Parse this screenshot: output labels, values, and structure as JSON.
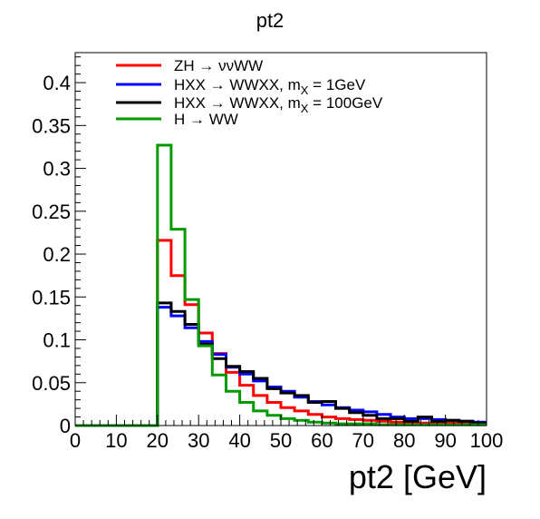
{
  "chart_data": {
    "type": "line",
    "title": "pt2",
    "xlabel": "pt2 [GeV]",
    "ylabel": "",
    "xlim": [
      0,
      100
    ],
    "ylim": [
      0,
      0.435
    ],
    "x_ticks": [
      0,
      10,
      20,
      30,
      40,
      50,
      60,
      70,
      80,
      90,
      100
    ],
    "x_tick_labels": [
      "0",
      "10",
      "20",
      "30",
      "40",
      "50",
      "60",
      "70",
      "80",
      "90",
      "100"
    ],
    "y_ticks": [
      0,
      0.05,
      0.1,
      0.15,
      0.2,
      0.25,
      0.3,
      0.35,
      0.4
    ],
    "y_tick_labels": [
      "0",
      "0.05",
      "0.1",
      "0.15",
      "0.2",
      "0.25",
      "0.3",
      "0.35",
      "0.4"
    ],
    "legend_position": "top-left",
    "bin_edges": [
      0,
      3.33,
      6.67,
      10,
      13.33,
      16.67,
      20,
      23.33,
      26.67,
      30,
      33.33,
      36.67,
      40,
      43.33,
      46.67,
      50,
      53.33,
      56.67,
      60,
      63.33,
      66.67,
      70,
      73.33,
      76.67,
      80,
      83.33,
      86.67,
      90,
      93.33,
      96.67,
      100
    ],
    "series": [
      {
        "name": "ZH → ννWW",
        "color": "#ff0000",
        "values": [
          0,
          0,
          0,
          0,
          0,
          0,
          0.216,
          0.175,
          0.141,
          0.108,
          0.084,
          0.062,
          0.047,
          0.035,
          0.027,
          0.021,
          0.017,
          0.013,
          0.01,
          0.008,
          0.007,
          0.006,
          0.005,
          0.004,
          0.004,
          0.003,
          0.003,
          0.003,
          0.002,
          0.002
        ]
      },
      {
        "name": "HXX → WWXX, m = 1GeV",
        "color": "#0000ff",
        "values": [
          0,
          0,
          0,
          0,
          0,
          0,
          0.138,
          0.128,
          0.114,
          0.098,
          0.083,
          0.068,
          0.06,
          0.052,
          0.045,
          0.04,
          0.033,
          0.028,
          0.024,
          0.021,
          0.018,
          0.016,
          0.013,
          0.01,
          0.008,
          0.008,
          0.007,
          0.006,
          0.005,
          0.004
        ]
      },
      {
        "name": "HXX → WWXX, m = 100GeV",
        "color": "#000000",
        "values": [
          0,
          0,
          0,
          0,
          0,
          0,
          0.143,
          0.133,
          0.118,
          0.095,
          0.078,
          0.069,
          0.063,
          0.055,
          0.043,
          0.038,
          0.035,
          0.027,
          0.028,
          0.02,
          0.015,
          0.012,
          0.008,
          0.008,
          0.005,
          0.01,
          0.005,
          0.006,
          0.005,
          0.003
        ]
      },
      {
        "name": "H → WW",
        "color": "#009900",
        "values": [
          0,
          0,
          0,
          0,
          0,
          0,
          0.327,
          0.229,
          0.147,
          0.093,
          0.059,
          0.04,
          0.027,
          0.017,
          0.012,
          0.008,
          0.006,
          0.004,
          0.003,
          0.002,
          0.002,
          0.002,
          0.001,
          0.001,
          0.001,
          0.001,
          0.001,
          0.001,
          0.001,
          0.001
        ]
      }
    ],
    "legend_entries": [
      {
        "text_a": "ZH → ννWW",
        "sub": "",
        "text_b": ""
      },
      {
        "text_a": "HXX → WWXX, m",
        "sub": "X",
        "text_b": " = 1GeV"
      },
      {
        "text_a": "HXX → WWXX, m",
        "sub": "X",
        "text_b": " = 100GeV"
      },
      {
        "text_a": "H → WW",
        "sub": "",
        "text_b": ""
      }
    ]
  }
}
